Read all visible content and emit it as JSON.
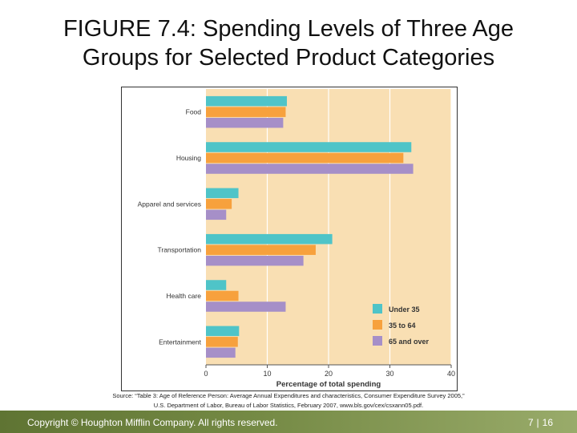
{
  "slide": {
    "title_line1": "FIGURE 7.4: Spending Levels of Three Age",
    "title_line2": "Groups for Selected Product Categories",
    "source_line1": "Source: “Table 3: Age of Reference Person: Average Annual Expenditures and characteristics, Consumer Expenditure Survey 2005,”",
    "source_line2": "U.S. Department of Labor, Bureau of Labor Statistics, February 2007, www.bls.gov/cex/csxann05.pdf."
  },
  "footer": {
    "copyright": "Copyright © Houghton Mifflin Company. All rights reserved.",
    "chapter": "7",
    "page": "16"
  },
  "colors": {
    "plot_bg": "#f9dfb3",
    "grid": "#ffffff"
  },
  "chart_data": {
    "type": "bar",
    "orientation": "horizontal",
    "categories": [
      "Food",
      "Housing",
      "Apparel and services",
      "Transportation",
      "Health care",
      "Entertainment"
    ],
    "series": [
      {
        "name": "Under 35",
        "color": "#4fc4c8",
        "values": [
          13.2,
          33.5,
          5.3,
          20.6,
          3.3,
          5.4
        ]
      },
      {
        "name": "35 to 64",
        "color": "#f7a13d",
        "values": [
          13.0,
          32.2,
          4.2,
          17.9,
          5.3,
          5.2
        ]
      },
      {
        "name": "65 and over",
        "color": "#a68fc8",
        "values": [
          12.6,
          33.8,
          3.3,
          15.9,
          13.0,
          4.8
        ]
      }
    ],
    "xlabel": "Percentage of total spending",
    "xlim": [
      0,
      40
    ],
    "xticks": [
      0,
      10,
      20,
      30,
      40
    ],
    "grid": true,
    "legend_position": "bottom-right"
  }
}
